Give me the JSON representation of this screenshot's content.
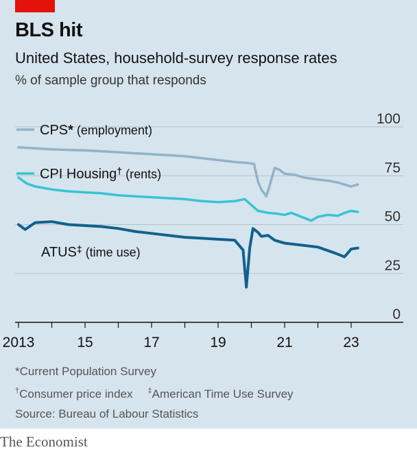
{
  "header": {
    "title": "BLS hit",
    "subtitle": "United States, household-survey response rates",
    "unit": "% of sample group that responds"
  },
  "footnotes": {
    "cps_mark": "*",
    "cps_text": "Current Population Survey",
    "cpi_mark": "†",
    "cpi_text": "Consumer price index",
    "atus_mark": "‡",
    "atus_text": "American Time Use Survey",
    "source": "Source: Bureau of Labour Statistics"
  },
  "brand": "The Economist",
  "colors": {
    "background": "#d6e4ed",
    "accent_red": "#e3120b",
    "cps": "#8fb3cb",
    "cpi": "#36c4d2",
    "atus": "#10618f"
  },
  "chart_data": {
    "type": "line",
    "xlim": [
      2012.7,
      2025
    ],
    "ylim": [
      0,
      100
    ],
    "y_ticks": [
      0,
      25,
      50,
      75,
      100
    ],
    "x_ticks": [
      {
        "value": 2013,
        "label": "2013"
      },
      {
        "value": 2015,
        "label": "15"
      },
      {
        "value": 2017,
        "label": "17"
      },
      {
        "value": 2019,
        "label": "19"
      },
      {
        "value": 2021,
        "label": "21"
      },
      {
        "value": 2023,
        "label": "23"
      }
    ],
    "grid": true,
    "series": [
      {
        "key": "cps",
        "name": "CPS",
        "mark": "*",
        "descriptor": "(employment)",
        "x": [
          2013.0,
          2013.5,
          2014.0,
          2014.5,
          2015.0,
          2015.5,
          2016.0,
          2016.5,
          2017.0,
          2017.5,
          2018.0,
          2018.5,
          2019.0,
          2019.5,
          2019.9,
          2020.08,
          2020.2,
          2020.3,
          2020.45,
          2020.55,
          2020.7,
          2020.85,
          2021.0,
          2021.3,
          2021.6,
          2022.0,
          2022.3,
          2022.6,
          2023.0,
          2023.2
        ],
        "values": [
          89.5,
          89,
          88.5,
          88.2,
          88,
          87.5,
          87,
          86.5,
          86,
          85.5,
          85,
          84,
          83,
          82,
          81.5,
          81,
          72,
          68,
          64.5,
          70,
          79,
          78,
          76,
          75.5,
          74,
          73,
          72.5,
          71.5,
          69.5,
          70.5
        ]
      },
      {
        "key": "cpi",
        "name": "CPI Housing",
        "mark": "†",
        "descriptor": "(rents)",
        "x": [
          2013.0,
          2013.25,
          2013.5,
          2014.0,
          2014.5,
          2015.0,
          2015.5,
          2016.0,
          2016.5,
          2017.0,
          2017.5,
          2018.0,
          2018.5,
          2019.0,
          2019.5,
          2019.8,
          2020.0,
          2020.2,
          2020.5,
          2020.8,
          2021.0,
          2021.2,
          2021.5,
          2021.8,
          2022.0,
          2022.3,
          2022.6,
          2022.8,
          2023.0,
          2023.2
        ],
        "values": [
          74,
          71,
          69.5,
          68,
          67,
          66.5,
          66,
          65,
          64.5,
          64,
          63.5,
          63,
          62,
          61.5,
          62,
          63,
          60,
          57,
          56,
          55.5,
          55,
          56,
          54,
          52,
          54,
          55,
          54.5,
          56,
          57,
          56.5
        ]
      },
      {
        "key": "atus",
        "name": "ATUS",
        "mark": "‡",
        "descriptor": "(time use)",
        "x": [
          2013.0,
          2013.2,
          2013.5,
          2014.0,
          2014.5,
          2015.0,
          2015.5,
          2016.0,
          2016.5,
          2017.0,
          2017.5,
          2018.0,
          2018.5,
          2019.0,
          2019.5,
          2019.75,
          2019.85,
          2019.95,
          2020.05,
          2020.2,
          2020.3,
          2020.5,
          2020.7,
          2021.0,
          2021.5,
          2022.0,
          2022.5,
          2022.8,
          2023.0,
          2023.2
        ],
        "values": [
          50,
          47.5,
          51,
          51.5,
          50,
          49.5,
          49,
          48,
          46.5,
          45.5,
          44.5,
          43.5,
          43,
          42.5,
          42,
          37,
          18,
          38,
          48,
          46,
          44,
          44.5,
          42,
          40.5,
          39.5,
          38.5,
          35.5,
          33.5,
          37.5,
          38
        ]
      }
    ]
  }
}
